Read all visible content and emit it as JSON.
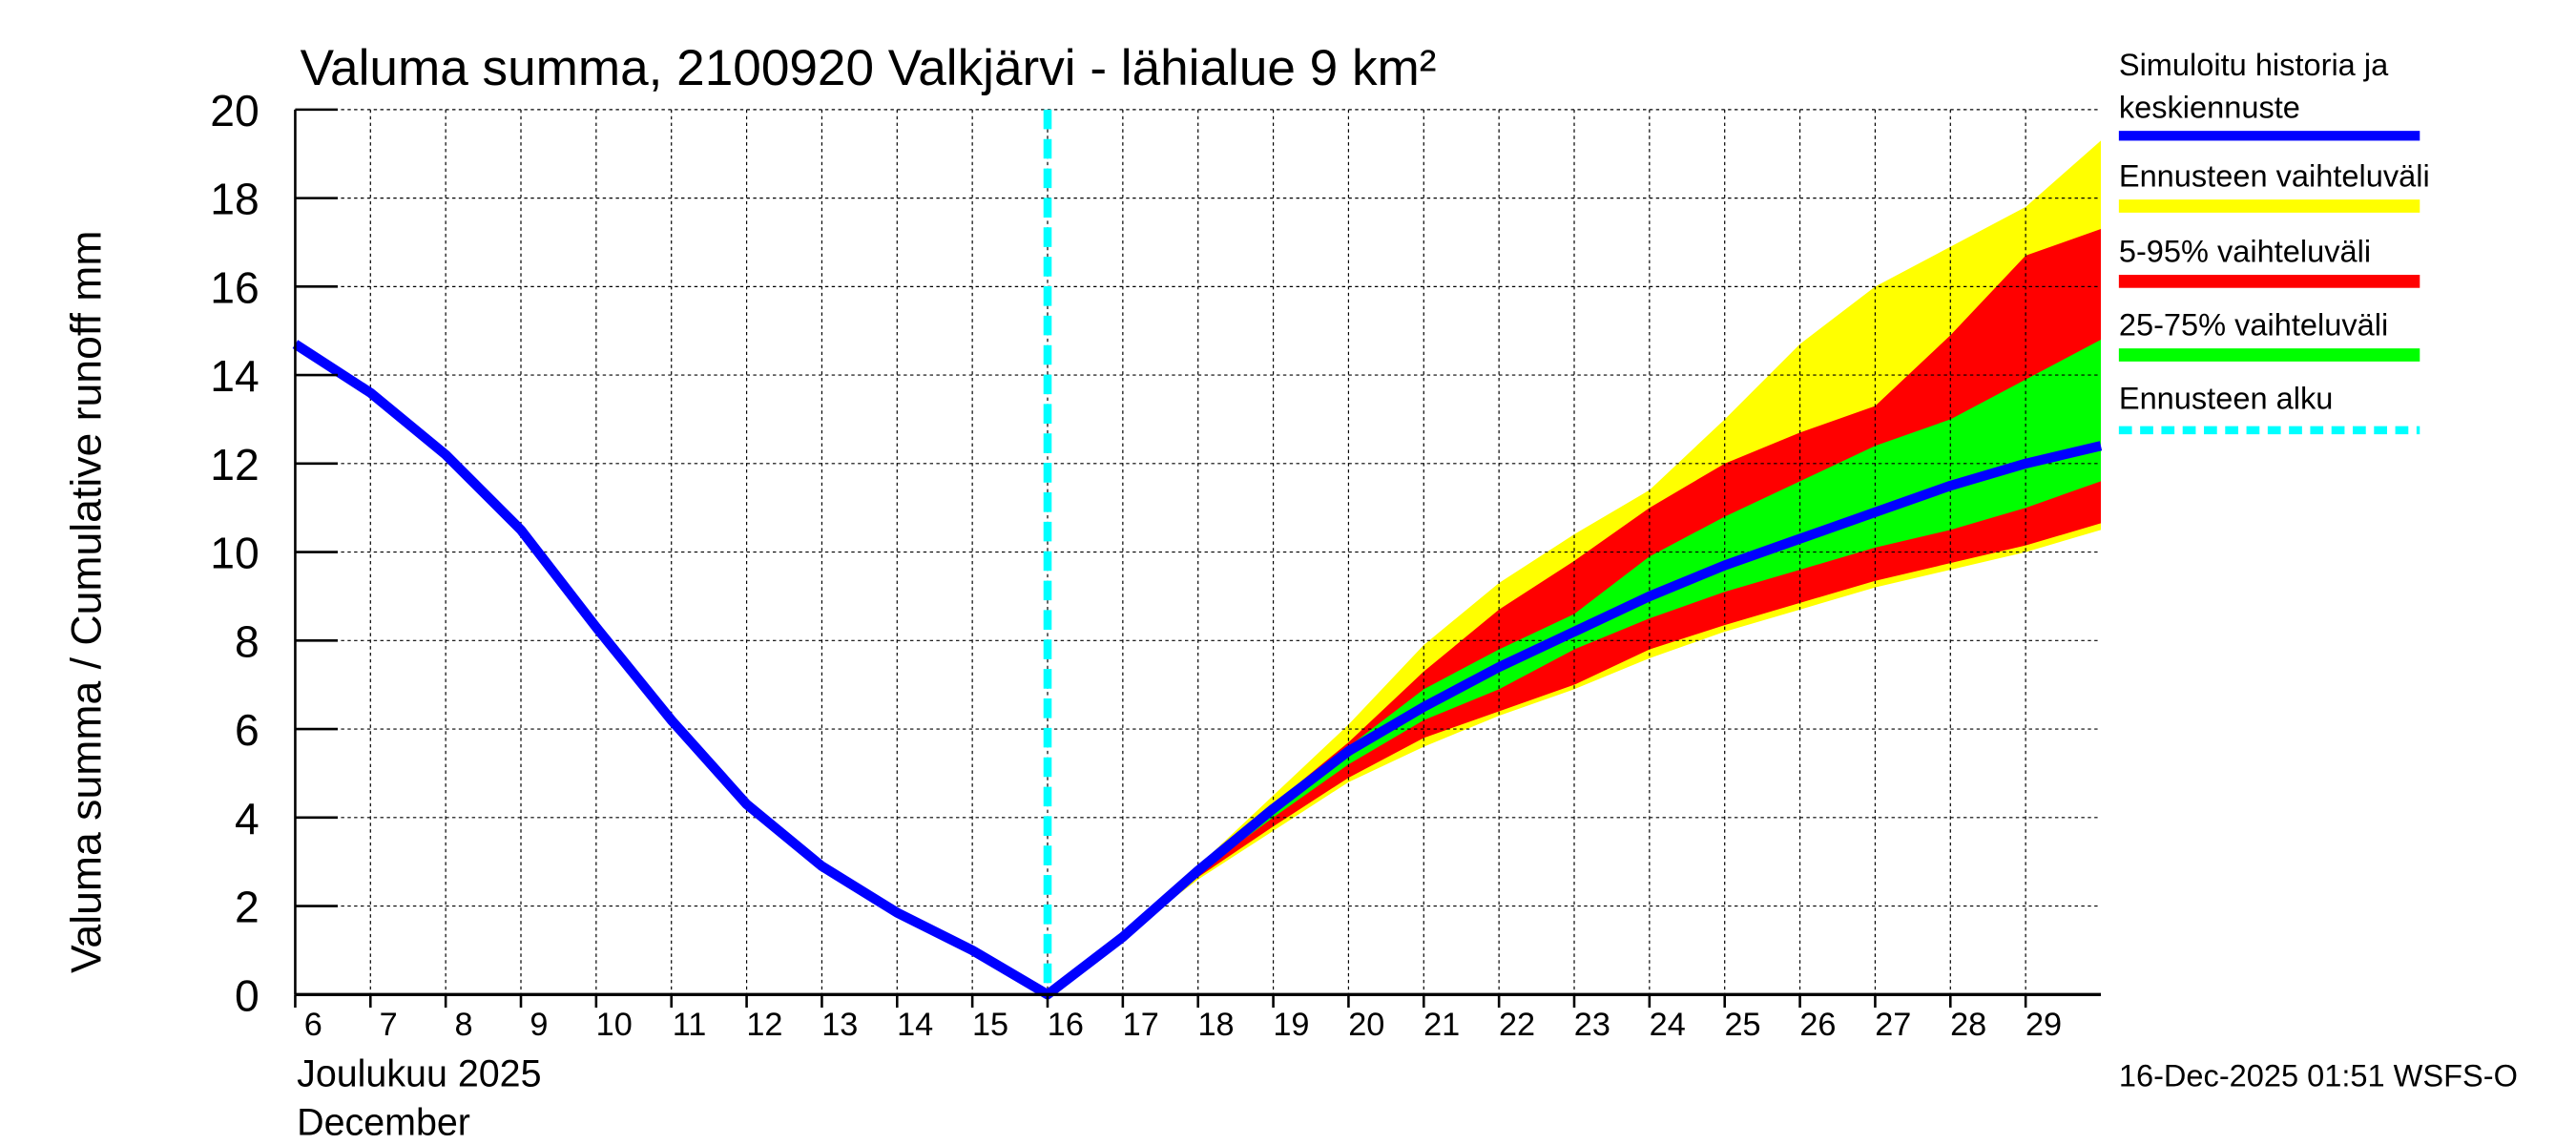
{
  "chart_data": {
    "type": "area",
    "title": "Valuma summa, 2100920 Valkjärvi - lähialue 9 km²",
    "ylabel": "Valuma summa / Cumulative runoff     mm",
    "xlabel_line1": "Joulukuu  2025",
    "xlabel_line2": "December",
    "ylim": [
      0,
      20
    ],
    "xlim": [
      6,
      30
    ],
    "grid": true,
    "yticks": [
      0,
      2,
      4,
      6,
      8,
      10,
      12,
      14,
      16,
      18,
      20
    ],
    "xticks": [
      6,
      7,
      8,
      9,
      10,
      11,
      12,
      13,
      14,
      15,
      16,
      17,
      18,
      19,
      20,
      21,
      22,
      23,
      24,
      25,
      26,
      27,
      28,
      29
    ],
    "forecast_start": 16,
    "legend_placement": "right",
    "series": [
      {
        "name": "Simuloitu historia ja keskiennuste",
        "color": "#0000ff",
        "x": [
          6,
          7,
          8,
          9,
          10,
          11,
          12,
          13,
          14,
          15,
          16,
          17,
          18,
          19,
          20,
          21,
          22,
          23,
          24,
          25,
          26,
          27,
          28,
          29,
          30
        ],
        "values": [
          14.7,
          13.6,
          12.2,
          10.5,
          8.3,
          6.2,
          4.3,
          2.9,
          1.85,
          1.0,
          0,
          1.3,
          2.8,
          4.2,
          5.5,
          6.5,
          7.4,
          8.2,
          9.0,
          9.7,
          10.3,
          10.9,
          11.5,
          12.0,
          12.4
        ]
      },
      {
        "name": "Ennusteen vaihteluväli",
        "color": "#ffff00",
        "x": [
          17,
          18,
          19,
          20,
          21,
          22,
          23,
          24,
          25,
          26,
          27,
          28,
          29,
          30
        ],
        "upper": [
          1.3,
          2.9,
          4.5,
          6.1,
          7.9,
          9.3,
          10.4,
          11.4,
          13.0,
          14.7,
          16.0,
          16.9,
          17.8,
          19.3
        ],
        "lower": [
          1.3,
          2.6,
          3.7,
          4.8,
          5.6,
          6.3,
          6.9,
          7.6,
          8.2,
          8.7,
          9.2,
          9.6,
          10.0,
          10.5
        ]
      },
      {
        "name": "5-95% vaihteluväli",
        "color": "#ff0000",
        "x": [
          17,
          18,
          19,
          20,
          21,
          22,
          23,
          24,
          25,
          26,
          27,
          28,
          29,
          30
        ],
        "upper": [
          1.3,
          2.85,
          4.3,
          5.7,
          7.3,
          8.7,
          9.8,
          11.0,
          12.0,
          12.7,
          13.3,
          14.9,
          16.7,
          17.3
        ],
        "lower": [
          1.3,
          2.65,
          3.8,
          4.9,
          5.8,
          6.4,
          7.0,
          7.8,
          8.35,
          8.85,
          9.35,
          9.75,
          10.15,
          10.65
        ]
      },
      {
        "name": "25-75% vaihteluväli",
        "color": "#00ff00",
        "x": [
          17,
          18,
          19,
          20,
          21,
          22,
          23,
          24,
          25,
          26,
          27,
          28,
          29,
          30
        ],
        "upper": [
          1.3,
          2.8,
          4.2,
          5.6,
          6.9,
          7.8,
          8.6,
          9.9,
          10.8,
          11.6,
          12.4,
          13.0,
          13.9,
          14.8
        ],
        "lower": [
          1.3,
          2.75,
          4.0,
          5.2,
          6.2,
          6.9,
          7.8,
          8.5,
          9.1,
          9.6,
          10.1,
          10.5,
          11.0,
          11.6
        ]
      },
      {
        "name": "Ennusteen alku",
        "color": "#00ffff"
      }
    ],
    "legend": {
      "hist_line1": "Simuloitu historia ja",
      "hist_line2": "keskiennuste",
      "range": "Ennusteen vaihteluväli",
      "p5_95": "5-95% vaihteluväli",
      "p25_75": "25-75% vaihteluväli",
      "start": "Ennusteen alku"
    },
    "footer": "16-Dec-2025 01:51 WSFS-O"
  }
}
